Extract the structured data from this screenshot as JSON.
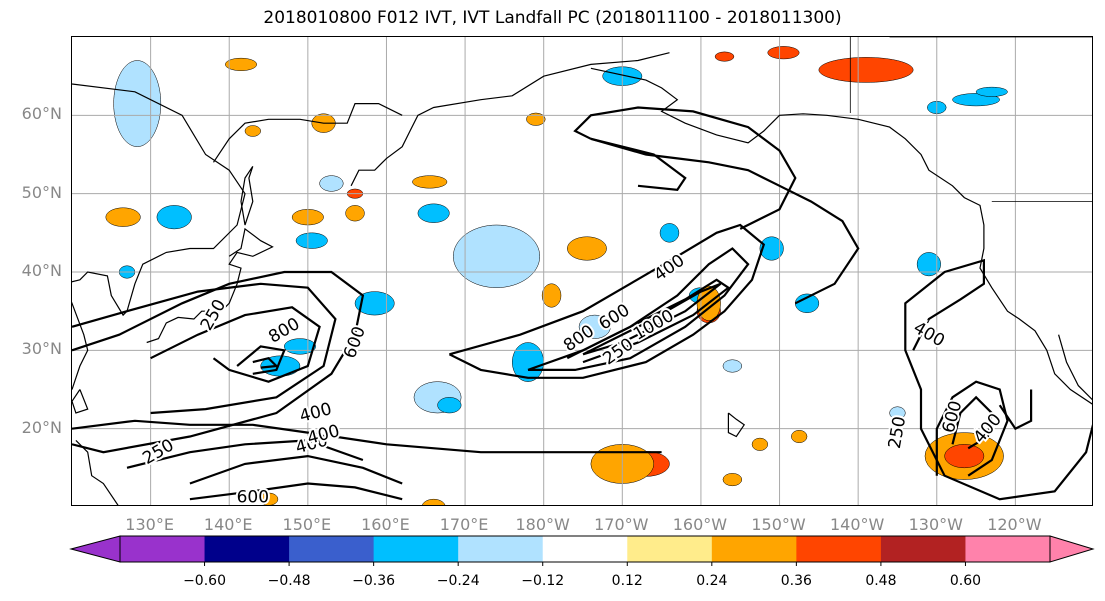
{
  "title": "2018010800 F012 IVT, IVT Landfall PC (2018011100 - 2018011300)",
  "map": {
    "lat_labels": [
      "60°N",
      "50°N",
      "40°N",
      "30°N",
      "20°N"
    ],
    "lat_values": [
      60,
      50,
      40,
      30,
      20
    ],
    "lon_labels": [
      "130°E",
      "140°E",
      "150°E",
      "160°E",
      "170°E",
      "180°W",
      "170°W",
      "160°W",
      "150°W",
      "140°W",
      "130°W",
      "120°W"
    ],
    "lat_range": [
      10,
      70
    ],
    "lon_range_east": [
      120,
      250
    ],
    "ivt_contour_labels": [
      {
        "text": "250",
        "lon": 138,
        "lat": 34.5,
        "rot": -60
      },
      {
        "text": "800",
        "lon": 147,
        "lat": 32.5,
        "rot": -30
      },
      {
        "text": "600",
        "lon": 156,
        "lat": 31,
        "rot": -70
      },
      {
        "text": "400",
        "lon": 151,
        "lat": 22,
        "rot": -15
      },
      {
        "text": "250",
        "lon": 131,
        "lat": 17,
        "rot": -30
      },
      {
        "text": "400",
        "lon": 150.5,
        "lat": 18,
        "rot": -15
      },
      {
        "text": "400",
        "lon": 152,
        "lat": 19.2,
        "rot": -15
      },
      {
        "text": "600",
        "lon": 143,
        "lat": 11.2,
        "rot": 0
      },
      {
        "text": "400",
        "lon": 196,
        "lat": 40.5,
        "rot": -35
      },
      {
        "text": "600",
        "lon": 189,
        "lat": 34.2,
        "rot": -32
      },
      {
        "text": "1000",
        "lon": 194,
        "lat": 33.2,
        "rot": -30
      },
      {
        "text": "800",
        "lon": 184.5,
        "lat": 31.5,
        "rot": -35
      },
      {
        "text": "250",
        "lon": 189.5,
        "lat": 29.8,
        "rot": -35
      },
      {
        "text": "400",
        "lon": 229,
        "lat": 32,
        "rot": 30
      },
      {
        "text": "600",
        "lon": 232,
        "lat": 21.5,
        "rot": -75
      },
      {
        "text": "250",
        "lon": 225,
        "lat": 19.5,
        "rot": -80
      },
      {
        "text": "400",
        "lon": 236.5,
        "lat": 20,
        "rot": -50
      }
    ]
  },
  "colorbar": {
    "colors": [
      "#9932cc",
      "#00008b",
      "#3a5fcd",
      "#00bfff",
      "#b0e2ff",
      "#ffffff",
      "#ffec8b",
      "#ffa500",
      "#ff4500",
      "#b22222",
      "#ff82ab"
    ],
    "tick_labels": [
      "-0.60",
      "-0.48",
      "-0.36",
      "-0.24",
      "-0.12",
      "0.12",
      "0.24",
      "0.36",
      "0.48",
      "0.60"
    ],
    "tick_values": [
      -0.6,
      -0.48,
      -0.36,
      -0.24,
      -0.12,
      0.12,
      0.24,
      0.36,
      0.48,
      0.6
    ]
  }
}
